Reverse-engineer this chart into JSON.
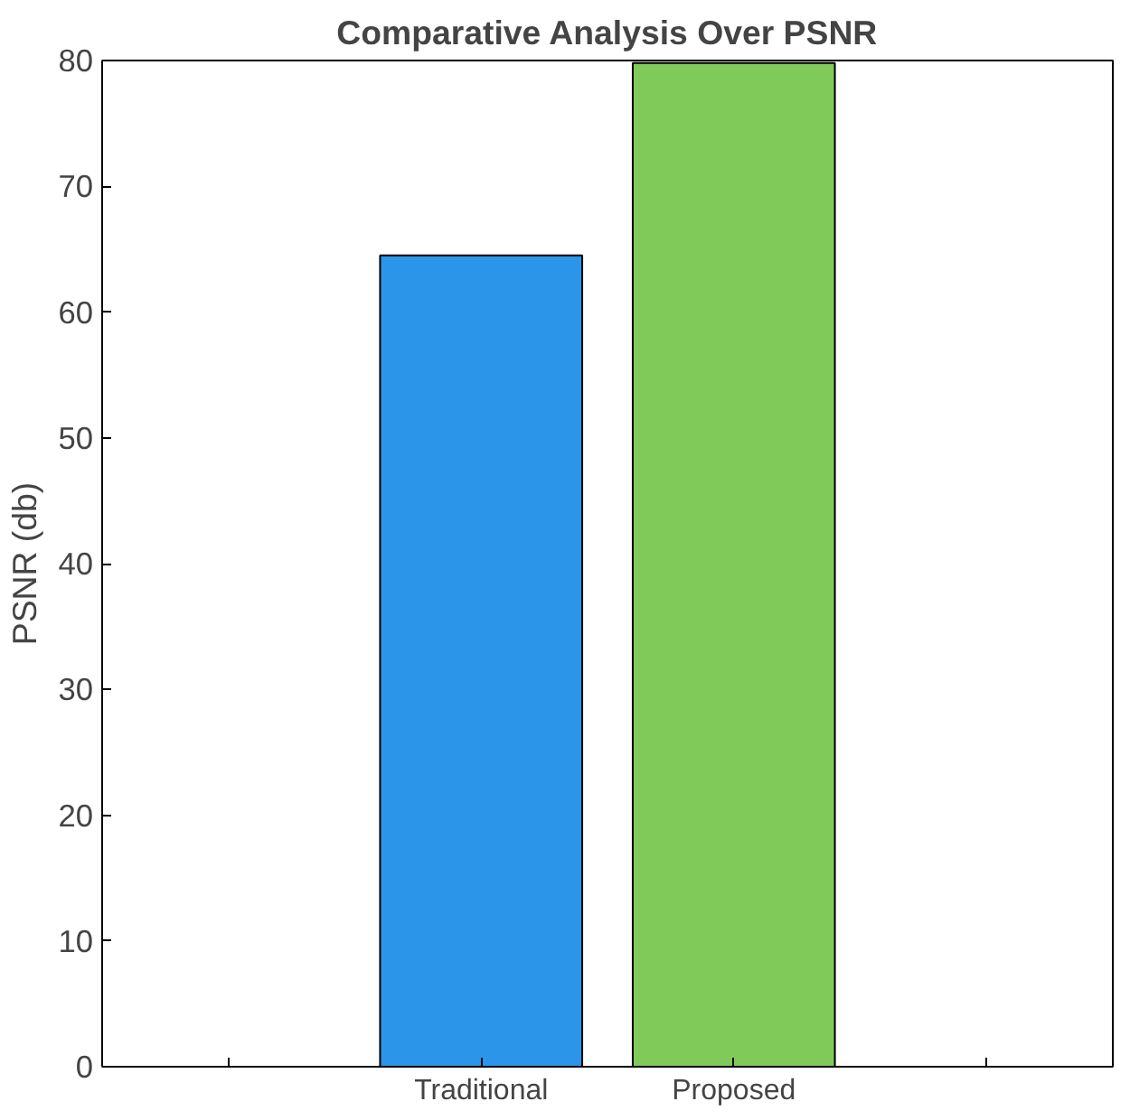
{
  "chart_data": {
    "type": "bar",
    "title": "Comparative Analysis Over PSNR",
    "ylabel": "PSNR (db)",
    "categories": [
      null,
      "Traditional",
      "Proposed",
      null
    ],
    "values": [
      null,
      64.5,
      79.8,
      null
    ],
    "colors": [
      "#2a95e9",
      "#2a95e9",
      "#80ca5a",
      "#80ca5a"
    ],
    "ylim": [
      0,
      80
    ],
    "yticks": [
      0,
      10,
      20,
      30,
      40,
      50,
      60,
      70,
      80
    ],
    "grid": false
  }
}
